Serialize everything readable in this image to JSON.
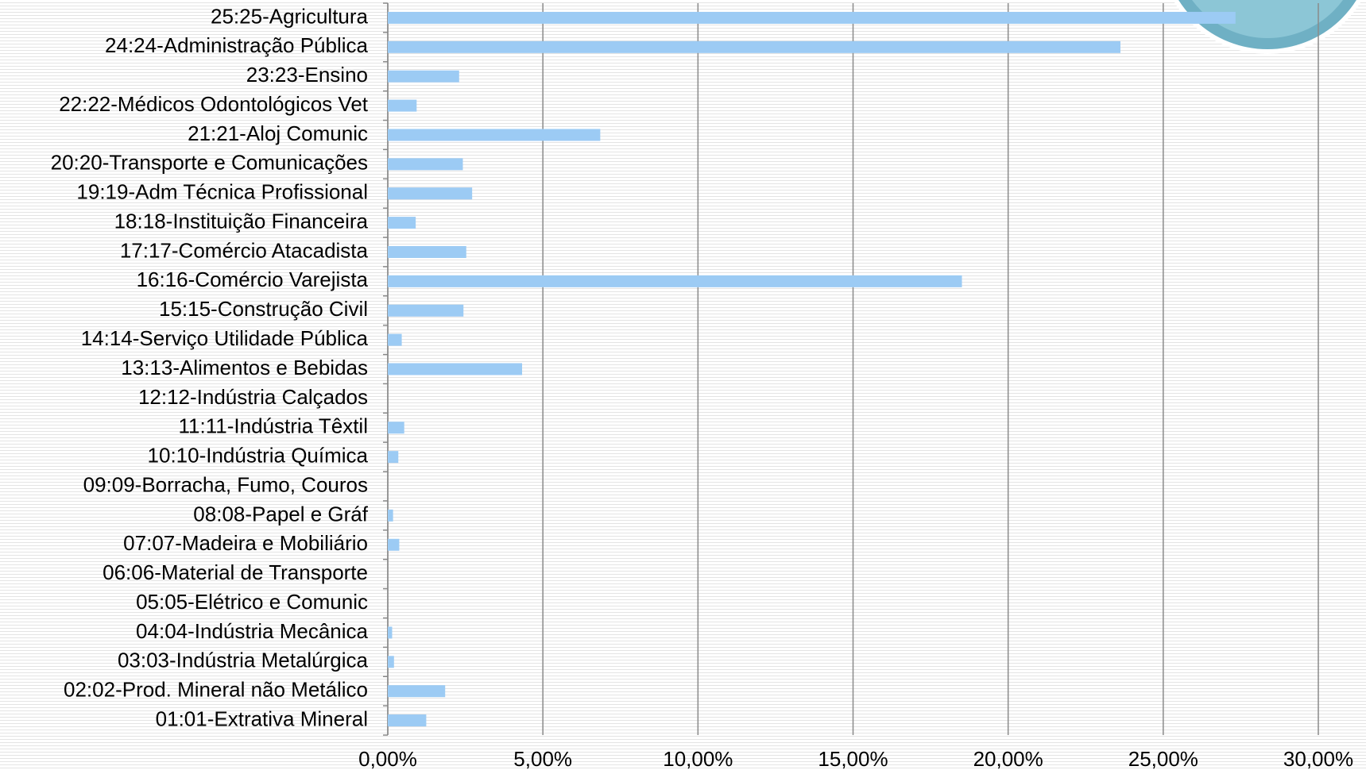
{
  "chart_data": {
    "type": "bar",
    "orientation": "horizontal",
    "categories": [
      "01:01-Extrativa Mineral",
      "02:02-Prod. Mineral não Metálico",
      "03:03-Indústria Metalúrgica",
      "04:04-Indústria Mecânica",
      "05:05-Elétrico e Comunic",
      "06:06-Material de Transporte",
      "07:07-Madeira e Mobiliário",
      "08:08-Papel e Gráf",
      "09:09-Borracha, Fumo, Couros",
      "10:10-Indústria Química",
      "11:11-Indústria Têxtil",
      "12:12-Indústria Calçados",
      "13:13-Alimentos e Bebidas",
      "14:14-Serviço Utilidade Pública",
      "15:15-Construção Civil",
      "16:16-Comércio Varejista",
      "17:17-Comércio Atacadista",
      "18:18-Instituição Financeira",
      "19:19-Adm Técnica Profissional",
      "20:20-Transporte e Comunicações",
      "21:21-Aloj Comunic",
      "22:22-Médicos Odontológicos Vet",
      "23:23-Ensino",
      "24:24-Administração Pública",
      "25:25-Agricultura"
    ],
    "values": [
      1.24,
      1.85,
      0.2,
      0.14,
      0,
      0,
      0.37,
      0.17,
      0,
      0.34,
      0.53,
      0,
      4.33,
      0.45,
      2.44,
      18.51,
      2.53,
      0.9,
      2.72,
      2.42,
      6.85,
      0.93,
      2.3,
      23.62,
      27.33
    ],
    "color": "#9ccbf4",
    "xlim": [
      0,
      30
    ],
    "xticks": [
      {
        "value": 0,
        "label": "0,00%"
      },
      {
        "value": 5,
        "label": "5,00%"
      },
      {
        "value": 10,
        "label": "10,00%"
      },
      {
        "value": 15,
        "label": "15,00%"
      },
      {
        "value": 20,
        "label": "20,00%"
      },
      {
        "value": 25,
        "label": "25,00%"
      },
      {
        "value": 30,
        "label": "30,00%"
      }
    ],
    "grid": true
  }
}
